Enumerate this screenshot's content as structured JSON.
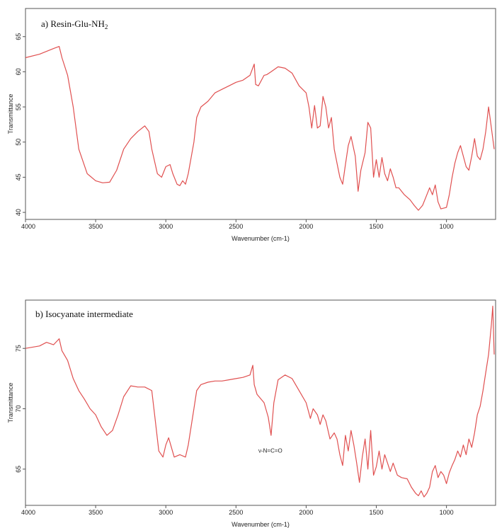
{
  "chart_data": [
    {
      "type": "line",
      "title": "a)  Resin-Glu-NH",
      "title_subscript": "2",
      "xlabel": "Wavenumber (cm-1)",
      "ylabel": "Transmittance",
      "xlim": [
        4000,
        650
      ],
      "ylim": [
        39,
        69
      ],
      "x_reversed": true,
      "grid": false,
      "line_color": "#e05050",
      "x_ticks": [
        4000,
        3500,
        3000,
        2500,
        2000,
        1500,
        1000
      ],
      "y_ticks": [
        40,
        45,
        50,
        55,
        60,
        65
      ],
      "series": [
        {
          "x": [
            4000,
            3900,
            3800,
            3760,
            3740,
            3700,
            3660,
            3620,
            3560,
            3500,
            3450,
            3400,
            3350,
            3300,
            3250,
            3200,
            3150,
            3120,
            3100,
            3060,
            3030,
            3000,
            2970,
            2950,
            2920,
            2900,
            2880,
            2860,
            2840,
            2800,
            2780,
            2750,
            2700,
            2650,
            2600,
            2550,
            2500,
            2450,
            2400,
            2370,
            2360,
            2340,
            2300,
            2280,
            2250,
            2200,
            2150,
            2100,
            2050,
            2000,
            1980,
            1960,
            1940,
            1920,
            1900,
            1880,
            1860,
            1840,
            1820,
            1800,
            1780,
            1760,
            1740,
            1720,
            1700,
            1680,
            1650,
            1630,
            1610,
            1580,
            1560,
            1540,
            1520,
            1500,
            1480,
            1460,
            1440,
            1420,
            1400,
            1380,
            1360,
            1340,
            1300,
            1260,
            1230,
            1200,
            1170,
            1150,
            1120,
            1100,
            1080,
            1060,
            1040,
            1000,
            980,
            960,
            940,
            920,
            900,
            880,
            860,
            840,
            820,
            800,
            780,
            760,
            740,
            720,
            700,
            680,
            660
          ],
          "y": [
            62,
            62.5,
            63.3,
            63.6,
            62,
            59.5,
            55,
            49,
            45.5,
            44.5,
            44.2,
            44.3,
            46,
            49,
            50.5,
            51.5,
            52.3,
            51.5,
            49,
            45.5,
            45,
            46.5,
            46.8,
            45.5,
            44,
            43.8,
            44.5,
            44,
            45.5,
            50,
            53.5,
            55,
            55.8,
            57,
            57.5,
            58,
            58.5,
            58.8,
            59.5,
            61.1,
            58.2,
            58,
            59.5,
            59.6,
            60,
            60.7,
            60.5,
            59.8,
            58,
            57,
            55,
            52,
            55.2,
            52,
            52.3,
            56.5,
            55,
            52,
            53.5,
            49,
            47,
            45,
            44,
            46.8,
            49.5,
            50.8,
            48,
            43,
            46,
            48.5,
            52.8,
            52,
            45,
            47.5,
            45,
            47.8,
            45.5,
            44.5,
            46.2,
            45,
            43.5,
            43.5,
            42.5,
            41.8,
            41,
            40.3,
            41,
            42,
            43.5,
            42.5,
            43.9,
            41.5,
            40.5,
            40.7,
            42.5,
            45,
            47,
            48.5,
            49.5,
            48,
            46.5,
            46,
            48,
            50.5,
            48,
            47.5,
            49,
            51.5,
            55,
            52,
            49
          ]
        }
      ]
    },
    {
      "type": "line",
      "title": "b) Isocyanate intermediate",
      "xlabel": "Wavenumber (cm-1)",
      "ylabel": "Transmittance",
      "xlim": [
        4000,
        650
      ],
      "ylim": [
        62,
        79
      ],
      "x_reversed": true,
      "grid": false,
      "line_color": "#e05050",
      "x_ticks": [
        4000,
        3500,
        3000,
        2500,
        2000,
        1500,
        1000
      ],
      "y_ticks": [
        65,
        70,
        75
      ],
      "annotations": [
        {
          "text": "ν-N=C=O",
          "x": 2255,
          "y": 67.2
        }
      ],
      "series": [
        {
          "x": [
            4000,
            3900,
            3850,
            3800,
            3760,
            3740,
            3700,
            3660,
            3620,
            3580,
            3540,
            3500,
            3460,
            3420,
            3380,
            3340,
            3300,
            3250,
            3200,
            3150,
            3100,
            3080,
            3050,
            3020,
            3000,
            2980,
            2960,
            2940,
            2900,
            2860,
            2840,
            2800,
            2780,
            2750,
            2700,
            2650,
            2600,
            2550,
            2500,
            2450,
            2400,
            2380,
            2370,
            2350,
            2300,
            2270,
            2250,
            2230,
            2200,
            2150,
            2100,
            2050,
            2000,
            1970,
            1950,
            1920,
            1900,
            1880,
            1860,
            1830,
            1800,
            1780,
            1760,
            1740,
            1720,
            1700,
            1680,
            1660,
            1640,
            1620,
            1600,
            1580,
            1560,
            1540,
            1520,
            1500,
            1480,
            1460,
            1440,
            1420,
            1400,
            1380,
            1350,
            1320,
            1280,
            1250,
            1220,
            1200,
            1180,
            1160,
            1140,
            1120,
            1100,
            1080,
            1060,
            1040,
            1020,
            1000,
            980,
            960,
            940,
            920,
            900,
            880,
            860,
            840,
            820,
            800,
            780,
            760,
            740,
            720,
            700,
            680,
            670,
            660
          ],
          "y": [
            75,
            75.2,
            75.5,
            75.3,
            75.8,
            74.8,
            74,
            72.5,
            71.5,
            70.8,
            70,
            69.5,
            68.5,
            67.8,
            68.2,
            69.5,
            71,
            71.9,
            71.8,
            71.8,
            71.5,
            69.5,
            66.5,
            66,
            67,
            67.6,
            66.8,
            66,
            66.2,
            66,
            67,
            70,
            71.5,
            72,
            72.2,
            72.3,
            72.3,
            72.4,
            72.5,
            72.6,
            72.8,
            73.6,
            72,
            71.2,
            70.5,
            69.3,
            67.8,
            70.5,
            72.4,
            72.8,
            72.5,
            71.5,
            70.5,
            69.2,
            70,
            69.5,
            68.7,
            69.5,
            69,
            67.5,
            68,
            67.5,
            66.2,
            65.3,
            67.8,
            66.5,
            68.2,
            67,
            65.5,
            63.9,
            66,
            67.5,
            65,
            68.2,
            64.5,
            65.2,
            66.5,
            65,
            66.2,
            65.5,
            64.8,
            65.5,
            64.5,
            64.3,
            64.2,
            63.5,
            63,
            62.8,
            63.2,
            62.7,
            63,
            63.5,
            64.8,
            65.3,
            64.3,
            64.8,
            64.5,
            63.8,
            64.7,
            65.3,
            65.8,
            66.5,
            66,
            67,
            66.2,
            67.5,
            66.8,
            68,
            69.5,
            70.2,
            71.5,
            73,
            74.5,
            77,
            78.5,
            74.5
          ]
        }
      ]
    }
  ]
}
